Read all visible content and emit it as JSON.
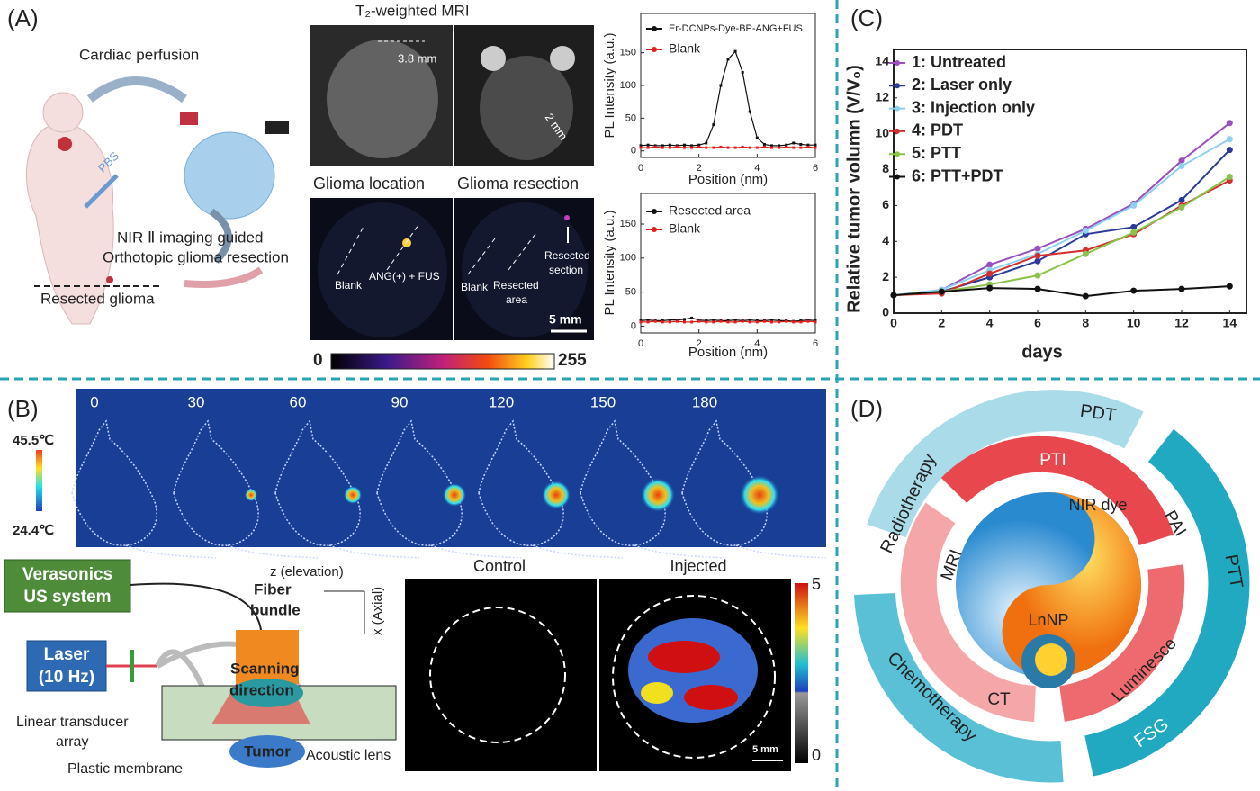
{
  "panels": {
    "A": {
      "label": "(A)",
      "cardiac": "Cardiac perfusion",
      "pbs": "PBS",
      "nir1": "NIR Ⅱ imaging guided",
      "nir2": "Orthotopic glioma resection",
      "resected_glioma": "Resected glioma",
      "mri_title": "T₂-weighted MRI",
      "d1": "3.8 mm",
      "d2": "2 mm",
      "loc": "Glioma location",
      "res": "Glioma resection",
      "blank1": "Blank",
      "ang": "ANG(+) + FUS",
      "blank2": "Blank",
      "ra1": "Resected",
      "ra2": "area",
      "rs1": "Resected",
      "rs2": "section",
      "scale": "5 mm",
      "cb_min": "0",
      "cb_max": "255"
    },
    "B": {
      "label": "(B)",
      "times": [
        0,
        30,
        60,
        90,
        120,
        150,
        180
      ],
      "t_max": "45.5℃",
      "t_min": "24.4℃",
      "vera1": "Verasonics",
      "vera2": "US system",
      "laser1": "Laser",
      "laser2": "(10 Hz)",
      "fiber1": "Fiber",
      "fiber2": "bundle",
      "scan1": "Scanning",
      "scan2": "direction",
      "z": "z (elevation)",
      "x": "x (Axial)",
      "lta1": "Linear transducer",
      "lta2": "array",
      "membrane": "Plastic membrane",
      "tumor": "Tumor",
      "lens": "Acoustic lens",
      "control": "Control",
      "injected": "Injected",
      "scale": "5 mm",
      "cb_max": "5",
      "cb_min": "0"
    },
    "C": {
      "label": "(C)"
    },
    "D": {
      "label": "(D)",
      "pdt": "PDT",
      "ptt": "PTT",
      "fsg": "FSG",
      "chemo": "Chemotherapy",
      "radio": "Radiotherapy",
      "pti": "PTI",
      "pai": "PAI",
      "lum": "Luminesce",
      "ct": "CT",
      "mri": "MRI",
      "nir": "NIR dye",
      "lnnp": "LnNP"
    }
  },
  "chart_data": [
    {
      "type": "line",
      "xlabel": "Position (nm)",
      "ylabel": "PL Intensity (a.u.)",
      "x": [
        0,
        0.25,
        0.5,
        0.75,
        1,
        1.25,
        1.5,
        1.75,
        2,
        2.25,
        2.5,
        2.75,
        3,
        3.25,
        3.5,
        3.75,
        4,
        4.25,
        4.5,
        4.75,
        5,
        5.25,
        5.5,
        5.75,
        6
      ],
      "series": [
        {
          "name": "Er-DCNPs-Dye-BP-ANG+FUS",
          "color": "#111111",
          "values": [
            8,
            9,
            8,
            8,
            9,
            8,
            9,
            8,
            9,
            12,
            40,
            100,
            140,
            152,
            120,
            60,
            20,
            10,
            8,
            8,
            9,
            12,
            10,
            9,
            9
          ]
        },
        {
          "name": "Blank",
          "color": "#e0201e",
          "values": [
            5,
            5,
            6,
            5,
            5,
            6,
            5,
            5,
            6,
            5,
            5,
            6,
            5,
            5,
            6,
            5,
            5,
            6,
            5,
            5,
            6,
            5,
            5,
            6,
            5
          ]
        }
      ],
      "xlim": [
        0,
        6
      ],
      "xticks": [
        0,
        2,
        4,
        6
      ],
      "ylim": [
        -10,
        210
      ],
      "yticks": [
        0,
        50,
        100,
        150
      ]
    },
    {
      "type": "line",
      "xlabel": "Position (nm)",
      "ylabel": "PL Intensity (a.u.)",
      "x": [
        0,
        0.25,
        0.5,
        0.75,
        1,
        1.25,
        1.5,
        1.75,
        2,
        2.25,
        2.5,
        2.75,
        3,
        3.25,
        3.5,
        3.75,
        4,
        4.25,
        4.5,
        4.75,
        5,
        5.25,
        5.5,
        5.75,
        6
      ],
      "series": [
        {
          "name": "Resected area",
          "color": "#111111",
          "values": [
            8,
            9,
            8,
            8,
            9,
            9,
            10,
            12,
            9,
            8,
            9,
            8,
            8,
            9,
            8,
            9,
            8,
            8,
            9,
            8,
            8,
            7,
            8,
            9,
            8
          ]
        },
        {
          "name": "Blank",
          "color": "#e0201e",
          "values": [
            6,
            6,
            7,
            6,
            6,
            7,
            6,
            6,
            7,
            6,
            6,
            7,
            6,
            6,
            7,
            6,
            6,
            7,
            6,
            6,
            7,
            6,
            6,
            7,
            6
          ]
        }
      ],
      "xlim": [
        0,
        6
      ],
      "xticks": [
        0,
        2,
        4,
        6
      ],
      "ylim": [
        -10,
        195
      ],
      "yticks": [
        0,
        50,
        100,
        150
      ]
    },
    {
      "type": "line",
      "xlabel": "days",
      "ylabel": "Relative tumor volumn (V/V₀)",
      "x": [
        0,
        2,
        4,
        6,
        8,
        10,
        12,
        14
      ],
      "series": [
        {
          "name": "1: Untreated",
          "color": "#9b4fc0",
          "values": [
            1,
            1.3,
            2.7,
            3.6,
            4.7,
            6.1,
            8.5,
            10.6
          ]
        },
        {
          "name": "2: Laser only",
          "color": "#2a3a9a",
          "values": [
            1,
            1.2,
            2.0,
            2.9,
            4.4,
            4.8,
            6.3,
            9.1
          ]
        },
        {
          "name": "3: Injection only",
          "color": "#8fd0f0",
          "values": [
            1,
            1.3,
            2.4,
            3.3,
            4.6,
            6.0,
            8.2,
            9.7
          ]
        },
        {
          "name": "4: PDT",
          "color": "#d32f2f",
          "values": [
            1,
            1.1,
            2.2,
            3.2,
            3.5,
            4.4,
            6.0,
            7.4
          ]
        },
        {
          "name": "5: PTT",
          "color": "#8bc34a",
          "values": [
            1,
            1.2,
            1.6,
            2.1,
            3.3,
            4.5,
            5.9,
            7.6
          ]
        },
        {
          "name": "6: PTT+PDT",
          "color": "#111111",
          "values": [
            1,
            1.2,
            1.4,
            1.35,
            0.95,
            1.25,
            1.35,
            1.5
          ]
        }
      ],
      "xlim": [
        0,
        14.7
      ],
      "xticks": [
        0,
        2,
        4,
        6,
        8,
        10,
        12,
        14
      ],
      "ylim": [
        0,
        14.7
      ],
      "yticks": [
        0,
        2,
        4,
        6,
        8,
        10,
        12,
        14
      ]
    }
  ]
}
